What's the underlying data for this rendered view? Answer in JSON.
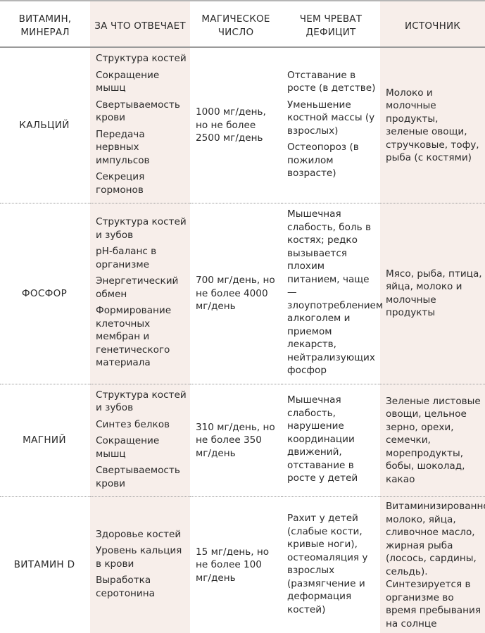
{
  "headers": [
    "ВИТАМИН, МИНЕРАЛ",
    "ЗА ЧТО ОТВЕЧАЕТ",
    "МАГИЧЕСКОЕ ЧИСЛО",
    "ЧЕМ ЧРЕВАТ ДЕФИЦИТ",
    "ИСТОЧНИК"
  ],
  "rows": [
    {
      "name": "КАЛЬЦИЙ",
      "functions": [
        "Структура костей",
        "Сокращение мышц",
        "Свертываемость крови",
        "Передача нервных импульсов",
        "Секреция гормонов"
      ],
      "dose": "1000 мг/день, но не более 2500 мг/день",
      "deficit": [
        "Отставание в росте (в детстве)",
        "Уменьшение костной массы (у взрослых)",
        "Остеопороз (в пожилом возрасте)"
      ],
      "source": "Молоко и молочные продукты, зеленые овощи, стручковые, тофу, рыба (с костями)"
    },
    {
      "name": "ФОСФОР",
      "functions": [
        "Структура костей и зубов",
        "pH-баланс в организме",
        "Энергетический обмен",
        "Формирование клеточных мембран и генетического материала"
      ],
      "dose": "700 мг/день, но не более 4000 мг/день",
      "deficit": [
        "Мышечная слабость, боль в костях; редко вызывается плохим питанием, чаще — злоупотреблением алкоголем и приемом лекарств, нейтрализующих фосфор"
      ],
      "source": "Мясо, рыба, птица, яйца, молоко и молочные продукты"
    },
    {
      "name": "МАГНИЙ",
      "functions": [
        "Структура костей и зубов",
        "Синтез белков",
        "Сокращение мышц",
        "Свертываемость крови"
      ],
      "dose": "310 мг/день, но не более 350 мг/день",
      "deficit": [
        "Мышечная слабость, нарушение координации движений, отставание в росте у детей"
      ],
      "source": "Зеленые листовые овощи, цельное зерно, орехи, семечки, морепродукты, бобы, шоколад, какао"
    },
    {
      "name": "ВИТАМИН D",
      "functions": [
        "Здоровье костей",
        "Уровень кальция в крови",
        "Выработка серотонина"
      ],
      "dose": "15 мг/день, но не более 100 мг/день",
      "deficit": [
        "Рахит у детей (слабые кости, кривые ноги), остеомаляция у взрослых (размягчение и деформация костей)"
      ],
      "source": "Витаминизированное молоко, яйца, сливочное масло, жирная рыба (лосось, сардины, сельдь). Синтезируется в организме во время пребывания на солнце"
    }
  ]
}
